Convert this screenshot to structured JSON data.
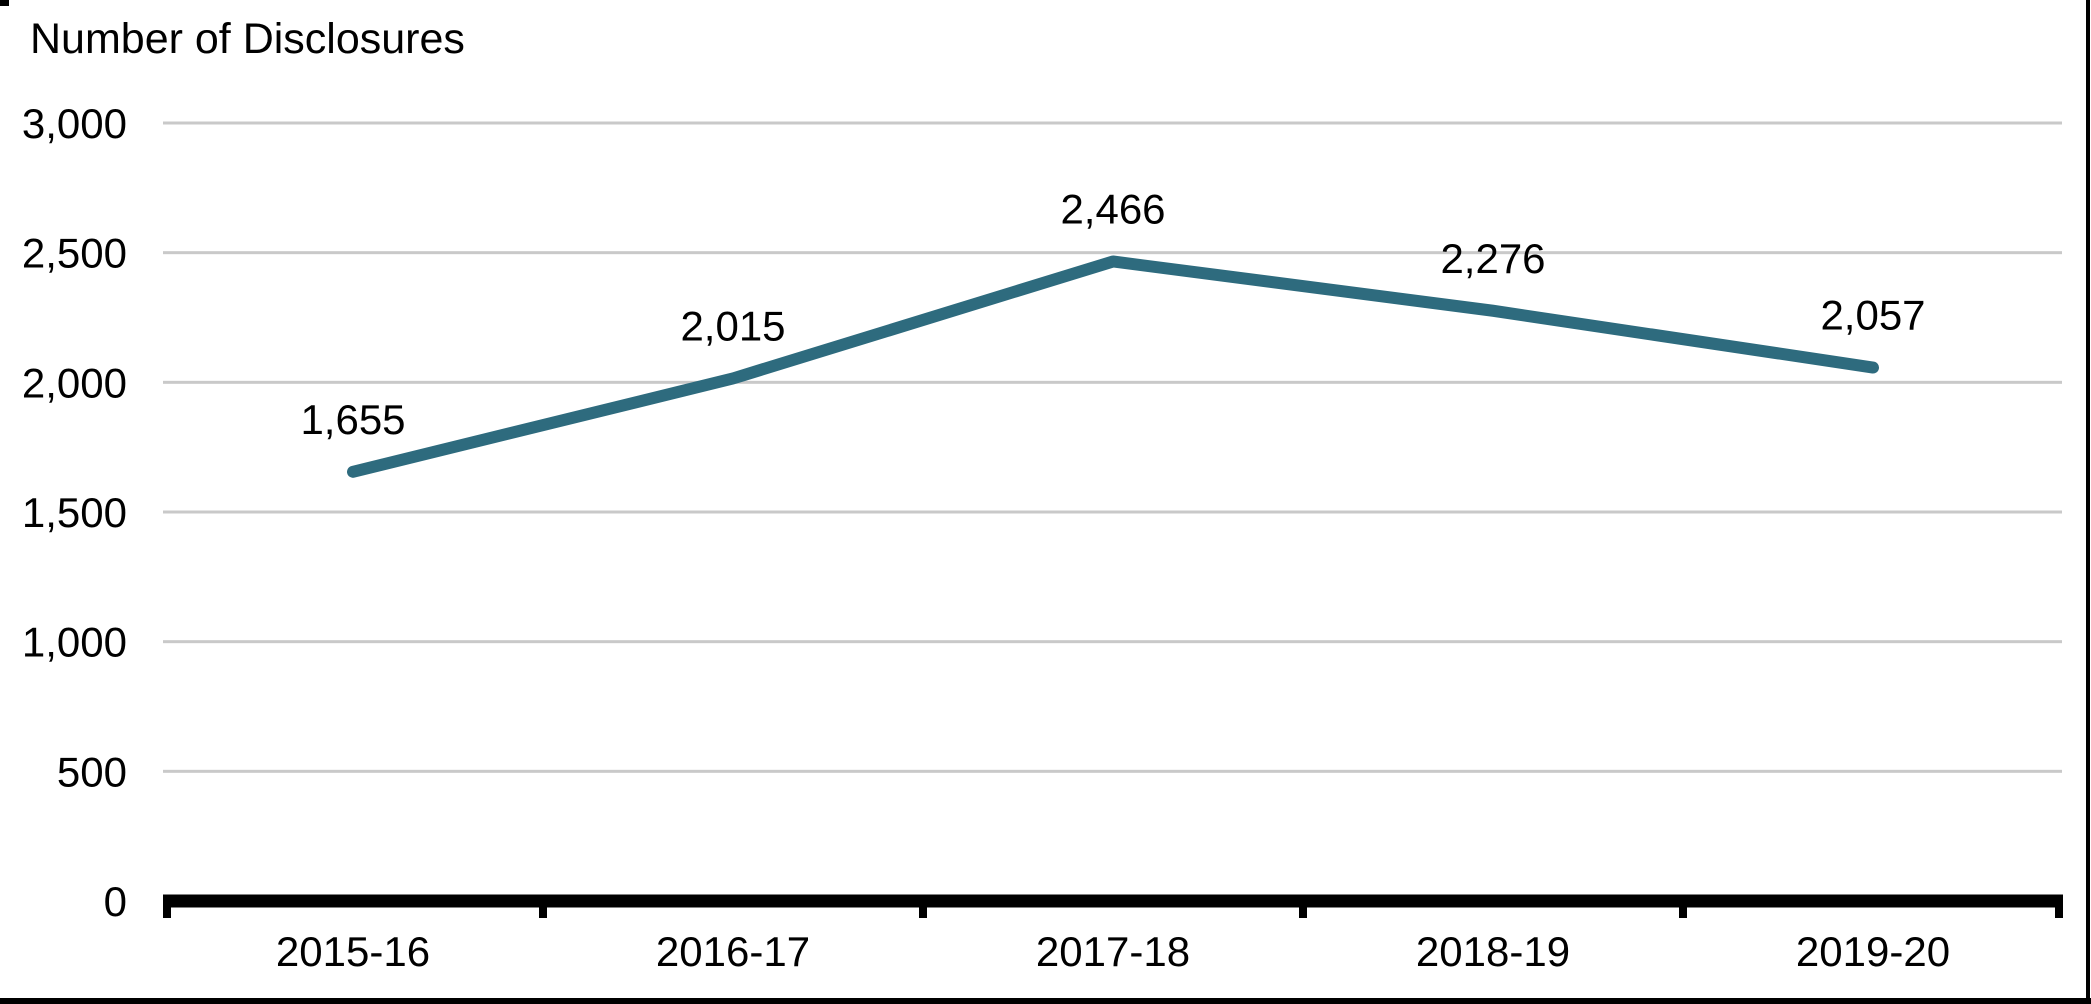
{
  "chart_data": {
    "type": "line",
    "title": "Number of Disclosures",
    "title_position": "top-left",
    "categories": [
      "2015-16",
      "2016-17",
      "2017-18",
      "2018-19",
      "2019-20"
    ],
    "series": [
      {
        "name": "Number of Disclosures",
        "values": [
          1655,
          2015,
          2466,
          2276,
          2057
        ]
      }
    ],
    "data_labels": [
      "1,655",
      "2,015",
      "2,466",
      "2,276",
      "2,057"
    ],
    "y_ticks": [
      0,
      500,
      1000,
      1500,
      2000,
      2500,
      3000
    ],
    "y_tick_labels": [
      "0",
      "500",
      "1,000",
      "1,500",
      "2,000",
      "2,500",
      "3,000"
    ],
    "ylim": [
      0,
      3000
    ],
    "xlabel": "",
    "ylabel": "Number of Disclosures",
    "grid": "horizontal-only",
    "legend": "none",
    "colors": {
      "line": "#2E6B7E",
      "gridline": "#C9C9C9",
      "axis": "#000000",
      "text": "#000000",
      "background": "#FFFFFF",
      "frame_border": "#000000"
    }
  }
}
